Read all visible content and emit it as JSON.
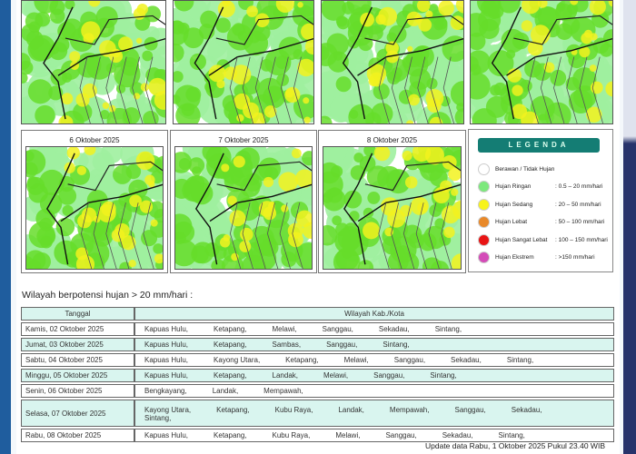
{
  "maps": {
    "top_row": [
      "",
      "",
      "",
      ""
    ],
    "bottom_row": [
      "6 Oktober 2025",
      "7 Oktober 2025",
      "8 Oktober 2025"
    ]
  },
  "legend": {
    "title": "LEGENDA",
    "items": [
      {
        "label": "Berawan / Tidak Hujan",
        "range": "",
        "color": "#ffffff"
      },
      {
        "label": "Hujan Ringan",
        "range": ": 0.5 – 20 mm/hari",
        "color": "#7de87d"
      },
      {
        "label": "Hujan Sedang",
        "range": ": 20 – 50 mm/hari",
        "color": "#f7f31a"
      },
      {
        "label": "Hujan Lebat",
        "range": ": 50 – 100 mm/hari",
        "color": "#e8892a"
      },
      {
        "label": "Hujan Sangat Lebat",
        "range": ": 100 – 150 mm/hari",
        "color": "#e81414"
      },
      {
        "label": "Hujan Ekstrem",
        "range": ": >150 mm/hari",
        "color": "#d44bb8"
      }
    ]
  },
  "section_title": "Wilayah berpotensi hujan > 20 mm/hari :",
  "table": {
    "headers": [
      "Tanggal",
      "Wilayah Kab./Kota"
    ],
    "rows": [
      {
        "date": "Kamis, 02 Oktober 2025",
        "places": [
          "Kapuas Hulu,",
          "Ketapang,",
          "Melawi,",
          "Sanggau,",
          "Sekadau,",
          "Sintang,"
        ]
      },
      {
        "date": "Jumat, 03 Oktober 2025",
        "places": [
          "Kapuas Hulu,",
          "Ketapang,",
          "Sambas,",
          "Sanggau,",
          "Sintang,"
        ]
      },
      {
        "date": "Sabtu, 04 Oktober 2025",
        "places": [
          "Kapuas Hulu,",
          "Kayong Utara,",
          "Ketapang,",
          "Melawi,",
          "Sanggau,",
          "Sekadau,",
          "Sintang,"
        ]
      },
      {
        "date": "Minggu, 05 Oktober 2025",
        "places": [
          "Kapuas Hulu,",
          "Ketapang,",
          "Landak,",
          "Melawi,",
          "Sanggau,",
          "Sintang,"
        ]
      },
      {
        "date": "Senin, 06 Oktober 2025",
        "places": [
          "Bengkayang,",
          "Landak,",
          "Mempawah,"
        ]
      },
      {
        "date": "Selasa, 07 Oktober 2025",
        "places": [
          "Kayong Utara,",
          "Ketapang,",
          "Kubu Raya,",
          "Landak,",
          "Mempawah,",
          "Sanggau,",
          "Sekadau,",
          "Sintang,"
        ]
      },
      {
        "date": "Rabu, 08 Oktober 2025",
        "places": [
          "Kapuas Hulu,",
          "Ketapang,",
          "Kubu Raya,",
          "Melawi,",
          "Sanggau,",
          "Sekadau,",
          "Sintang,"
        ]
      }
    ]
  },
  "update_text": "Update data Rabu, 1 Oktober 2025 Pukul 23.40 WIB"
}
